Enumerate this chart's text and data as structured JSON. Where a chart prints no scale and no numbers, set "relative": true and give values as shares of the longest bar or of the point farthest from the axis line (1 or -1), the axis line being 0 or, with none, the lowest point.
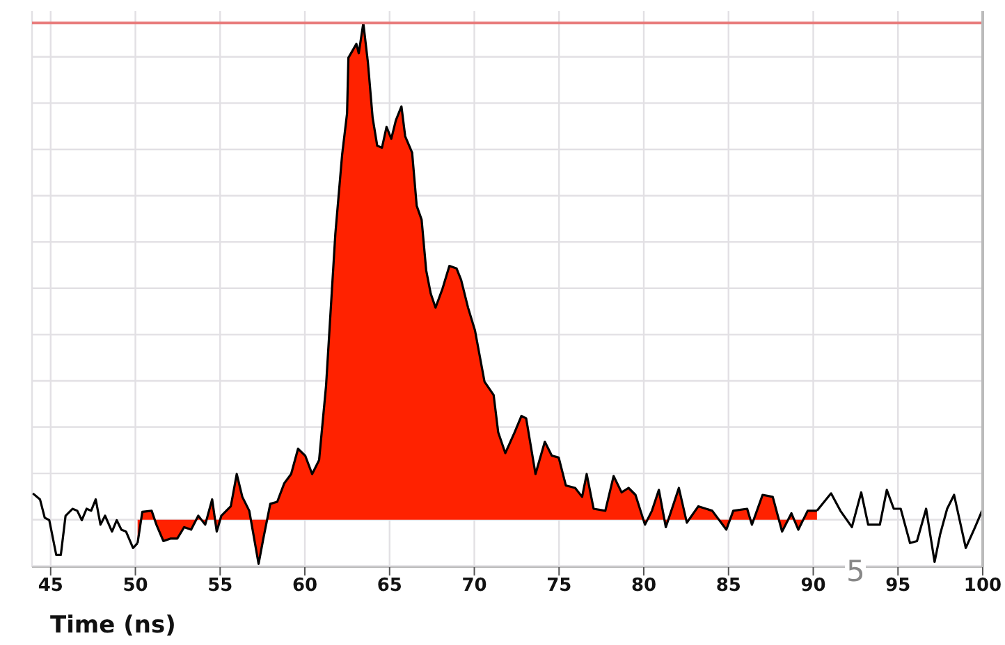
{
  "chart_data": {
    "type": "area",
    "relative": true,
    "xlabel": "Time (ns)",
    "xlim": [
      43.9,
      100
    ],
    "xticks": [
      45,
      50,
      55,
      60,
      65,
      70,
      75,
      80,
      85,
      90,
      95,
      100
    ],
    "grid": true,
    "legend": false,
    "tick_labels": "x",
    "annotations": [
      "5"
    ],
    "ref_lines": [
      {
        "axis": "y",
        "value": 1,
        "color": "#e87a7a"
      }
    ],
    "series": [
      {
        "type": "line",
        "color": "#000000",
        "x": [
          43.95,
          44.37,
          44.65,
          44.92,
          45.33,
          45.6,
          45.88,
          46.29,
          46.57,
          46.84,
          47.12,
          47.39,
          47.66,
          47.94,
          48.21,
          48.62,
          48.9,
          49.17,
          49.45,
          49.86,
          50.13,
          70,
          90.22,
          91.05,
          91.6,
          92.28,
          92.83,
          93.24,
          93.93,
          94.34,
          94.75,
          95.16,
          95.71,
          96.12,
          96.66,
          97.16,
          97.49,
          97.9,
          98.31,
          99.0,
          99.55,
          99.96
        ],
        "values": [
          0.053,
          0.041,
          0.004,
          -0.001,
          -0.071,
          -0.071,
          0.008,
          0.022,
          0.018,
          -0.001,
          0.022,
          0.018,
          0.041,
          -0.01,
          0.008,
          -0.024,
          -0.001,
          -0.02,
          -0.024,
          -0.057,
          -0.047,
          null,
          0.018,
          0.053,
          0.018,
          -0.015,
          0.055,
          -0.01,
          -0.01,
          0.06,
          0.022,
          0.022,
          -0.047,
          -0.043,
          0.022,
          -0.085,
          -0.029,
          0.022,
          0.05,
          -0.057,
          -0.015,
          0.018
        ]
      },
      {
        "color": "#ff2200",
        "x": [
          50.13,
          50.41,
          50.96,
          51.24,
          51.65,
          52.06,
          52.47,
          52.88,
          53.29,
          53.71,
          54.12,
          54.53,
          54.8,
          55.07,
          55.63,
          55.98,
          56.31,
          56.72,
          57.27,
          57.55,
          57.96,
          58.37,
          58.78,
          59.19,
          59.6,
          60.02,
          60.43,
          60.84,
          61.25,
          61.8,
          62.2,
          62.49,
          62.57,
          63.04,
          63.18,
          63.45,
          63.72,
          64.0,
          64.27,
          64.55,
          64.82,
          65.1,
          65.37,
          65.7,
          65.92,
          66.33,
          66.6,
          66.89,
          67.16,
          67.43,
          67.71,
          68.12,
          68.53,
          68.95,
          69.22,
          69.63,
          70.04,
          70.6,
          71.14,
          71.41,
          71.83,
          72.38,
          72.78,
          73.06,
          73.61,
          74.16,
          74.57,
          74.98,
          75.4,
          75.95,
          76.36,
          76.63,
          77.04,
          77.73,
          78.22,
          78.69,
          79.1,
          79.51,
          80.07,
          80.48,
          80.89,
          81.3,
          81.71,
          82.07,
          82.54,
          83.22,
          84.04,
          84.87,
          85.28,
          86.1,
          86.38,
          87.01,
          87.61,
          88.16,
          88.71,
          89.12,
          89.67,
          90.22
        ],
        "values": [
          -0.047,
          0.016,
          0.018,
          -0.01,
          -0.043,
          -0.038,
          -0.038,
          -0.015,
          -0.02,
          0.008,
          -0.01,
          0.041,
          -0.024,
          0.008,
          0.027,
          0.092,
          0.046,
          0.018,
          -0.089,
          -0.038,
          0.032,
          0.036,
          0.073,
          0.092,
          0.143,
          0.129,
          0.092,
          0.12,
          0.269,
          0.576,
          0.735,
          0.818,
          0.93,
          0.958,
          0.939,
          1.0,
          0.921,
          0.809,
          0.753,
          0.749,
          0.791,
          0.767,
          0.804,
          0.832,
          0.772,
          0.739,
          0.632,
          0.604,
          0.502,
          0.455,
          0.427,
          0.465,
          0.511,
          0.506,
          0.483,
          0.427,
          0.381,
          0.278,
          0.251,
          0.176,
          0.134,
          0.176,
          0.209,
          0.204,
          0.092,
          0.157,
          0.129,
          0.125,
          0.069,
          0.064,
          0.046,
          0.092,
          0.022,
          0.018,
          0.088,
          0.055,
          0.064,
          0.05,
          -0.01,
          0.018,
          0.06,
          -0.015,
          0.027,
          0.064,
          -0.006,
          0.027,
          0.018,
          -0.02,
          0.018,
          0.022,
          -0.01,
          0.05,
          0.046,
          -0.024,
          0.013,
          -0.02,
          0.018,
          0.018
        ]
      }
    ]
  }
}
